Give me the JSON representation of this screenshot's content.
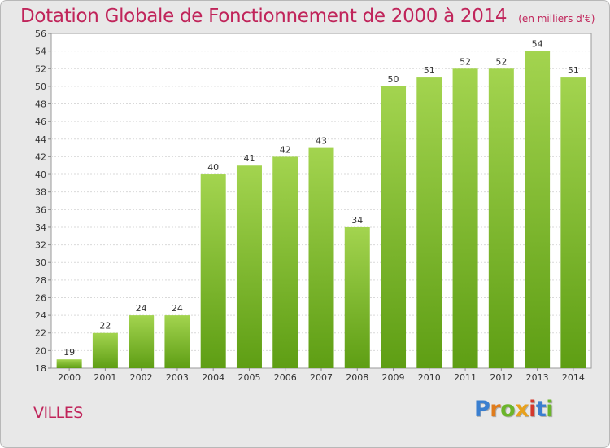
{
  "chart_data": {
    "type": "bar",
    "title": "Dotation Globale de Fonctionnement de 2000 à 2014",
    "subtitle": "(en milliers d'€)",
    "categories": [
      "2000",
      "2001",
      "2002",
      "2003",
      "2004",
      "2005",
      "2006",
      "2007",
      "2008",
      "2009",
      "2010",
      "2011",
      "2012",
      "2013",
      "2014"
    ],
    "values": [
      19,
      22,
      24,
      24,
      40,
      41,
      42,
      43,
      34,
      50,
      51,
      52,
      52,
      54,
      51
    ],
    "ylim": [
      18,
      56
    ],
    "yticks": [
      18,
      20,
      22,
      24,
      26,
      28,
      30,
      32,
      34,
      36,
      38,
      40,
      42,
      44,
      46,
      48,
      50,
      52,
      54,
      56
    ],
    "xlabel": "",
    "ylabel": "",
    "grid": true,
    "bar_color": "#7bc023"
  },
  "commune": "VILLES",
  "logo": {
    "letters": [
      "P",
      "r",
      "o",
      "x",
      "i",
      "t",
      "i"
    ],
    "colors": [
      "#3a7fd0",
      "#e07c1c",
      "#6bb52a",
      "#e8a11c",
      "#d4382c",
      "#3a7fd0",
      "#6bb52a"
    ]
  }
}
